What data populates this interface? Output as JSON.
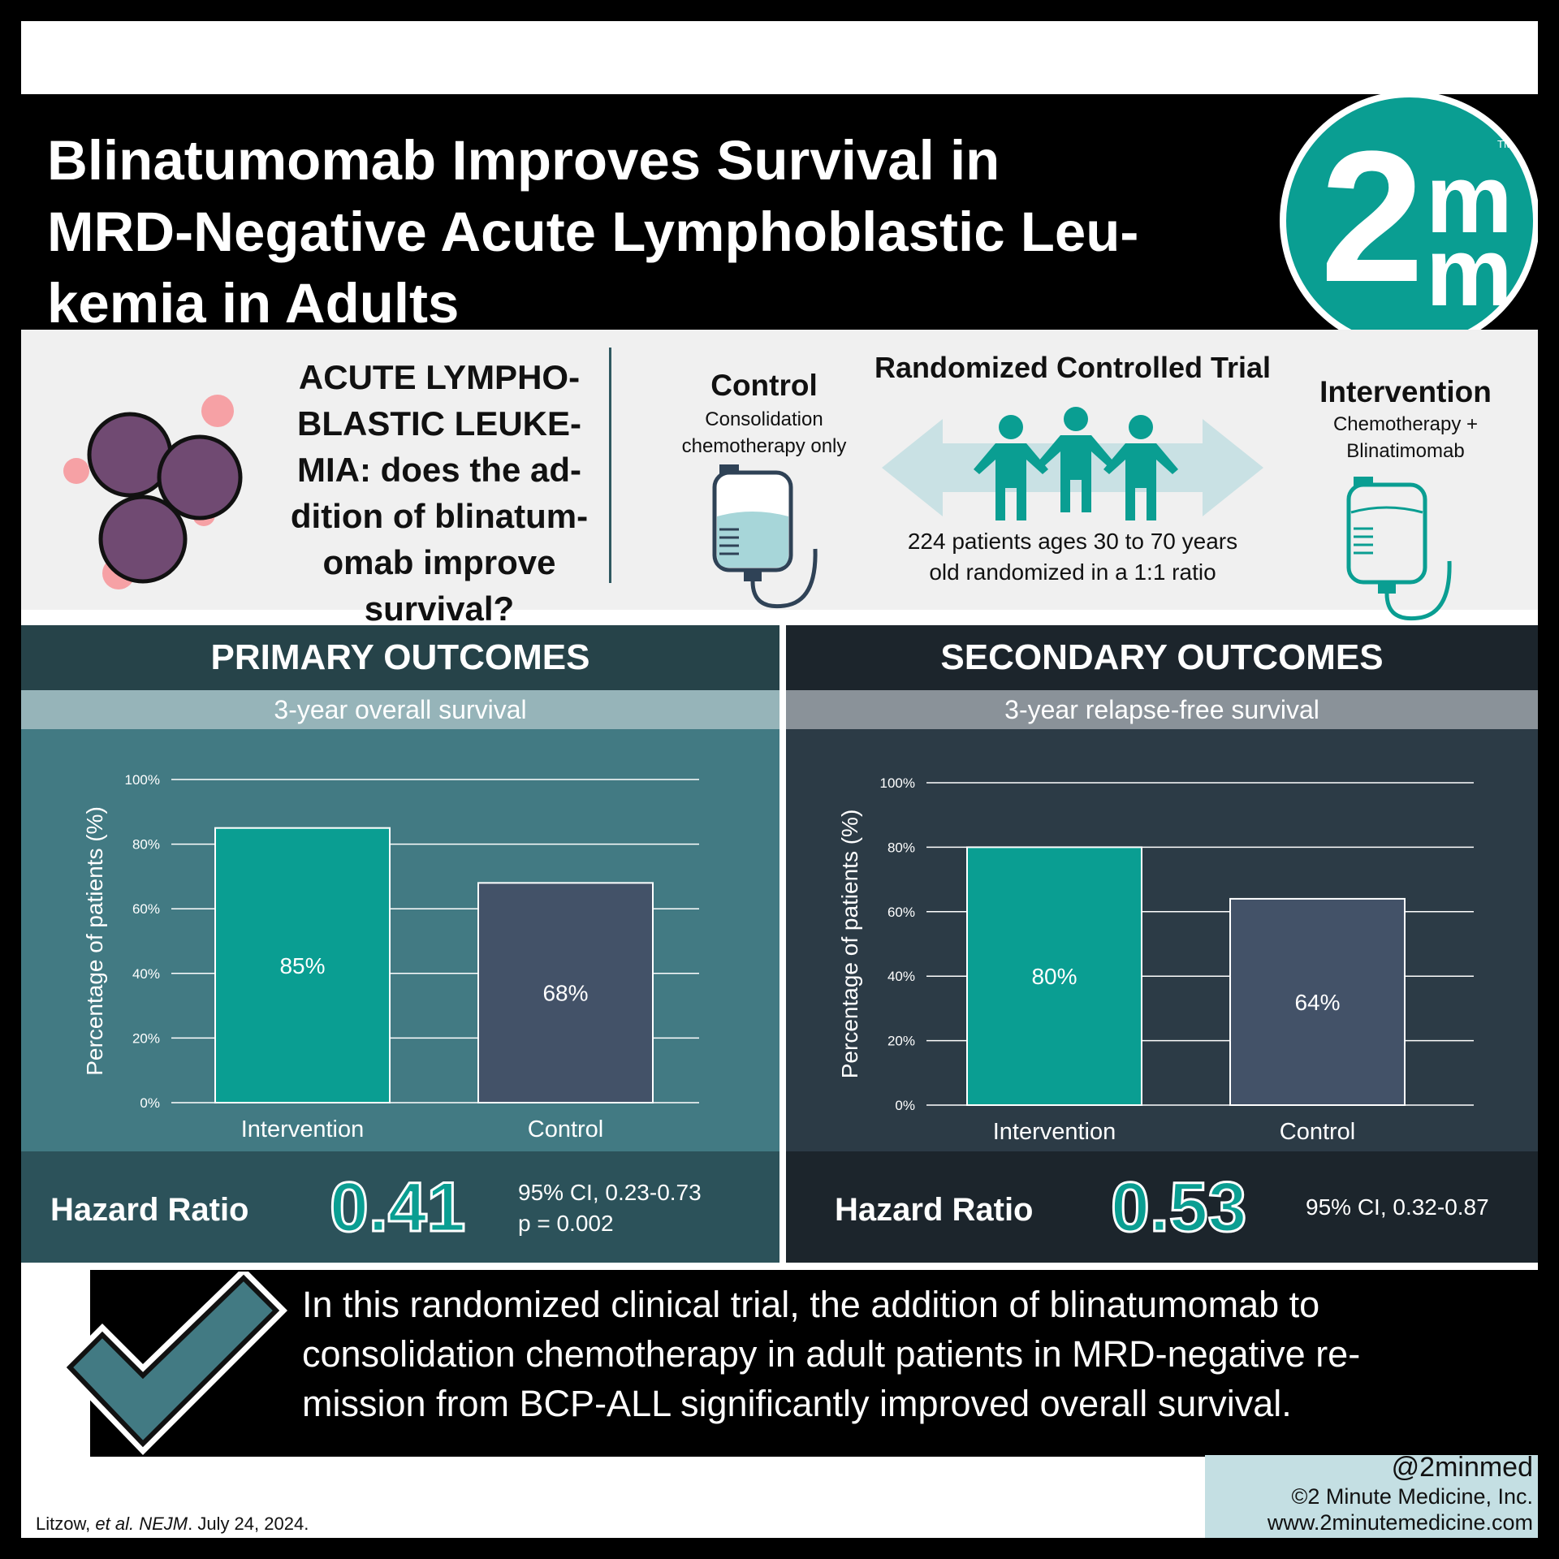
{
  "title": "Blinatumomab Improves Survival in MRD-Negative Acute Lymphoblastic Leukemia in Adults",
  "title_lines": [
    "Blinatumomab Improves Survival in",
    "MRD-Negative Acute Lymphoblastic Leu-",
    "kemia in Adults"
  ],
  "logo": {
    "number": "2",
    "letter": "m",
    "trademark": "TM"
  },
  "question_lines": [
    "ACUTE LYMPHO-",
    "BLASTIC LEUKE-",
    "MIA: does the ad-",
    "dition of blinatum-",
    "omab improve",
    "survival?"
  ],
  "trial": {
    "design": "Randomized Controlled Trial",
    "control_label": "Control",
    "control_desc_lines": [
      "Consolidation",
      "chemotherapy only"
    ],
    "intervention_label": "Intervention",
    "intervention_desc_lines": [
      "Chemotherapy +",
      "Blinatimomab"
    ],
    "patients_lines": [
      "224 patients ages 30 to 70 years",
      "old randomized in a 1:1 ratio"
    ]
  },
  "colors": {
    "teal": "#0a9e92",
    "navy_bar": "#435268",
    "pink": "#f6a1a5",
    "cell": "#704a72",
    "light_teal": "#c9e1e4",
    "icon_dark": "#2f4256"
  },
  "primary": {
    "heading": "PRIMARY OUTCOMES",
    "subheading": "3-year overall survival",
    "hazard_label": "Hazard Ratio",
    "hazard_value": "0.41",
    "ci": "95% CI, 0.23-0.73",
    "p_value": "p = 0.002"
  },
  "secondary": {
    "heading": "SECONDARY OUTCOMES",
    "subheading": "3-year relapse-free survival",
    "hazard_label": "Hazard Ratio",
    "hazard_value": "0.53",
    "ci": "95% CI, 0.32-0.87"
  },
  "chart_data": [
    {
      "type": "bar",
      "title": "3-year overall survival",
      "categories": [
        "Intervention",
        "Control"
      ],
      "values": [
        85,
        68
      ],
      "labels": [
        "85%",
        "68%"
      ],
      "ylabel": "Percentage of patients (%)",
      "ylim": [
        0,
        100
      ],
      "yticks": [
        0,
        20,
        40,
        60,
        80,
        100
      ],
      "ytick_labels": [
        "0%",
        "20%",
        "40%",
        "60%",
        "80%",
        "100%"
      ],
      "grid": true,
      "colors": [
        "#0a9e92",
        "#435268"
      ]
    },
    {
      "type": "bar",
      "title": "3-year relapse-free survival",
      "categories": [
        "Intervention",
        "Control"
      ],
      "values": [
        80,
        64
      ],
      "labels": [
        "80%",
        "64%"
      ],
      "ylabel": "Percentage of patients (%)",
      "ylim": [
        0,
        100
      ],
      "yticks": [
        0,
        20,
        40,
        60,
        80,
        100
      ],
      "ytick_labels": [
        "0%",
        "20%",
        "40%",
        "60%",
        "80%",
        "100%"
      ],
      "grid": true,
      "colors": [
        "#0a9e92",
        "#435268"
      ]
    }
  ],
  "conclusion_lines": [
    "In this randomized clinical trial, the addition of blinatumomab to",
    "consolidation chemotherapy in adult patients in MRD-negative re-",
    "mission from BCP-ALL significantly improved overall survival."
  ],
  "citation": {
    "authors": "Litzow, ",
    "etal": "et al.",
    "space": " ",
    "journal": "NEJM",
    "date": ". July 24, 2024."
  },
  "brand": {
    "handle": "@2minmed",
    "copyright": "©2 Minute Medicine, Inc.",
    "website": "www.2minutemedicine.com"
  },
  "icons": [
    "leukemia-cells-icon",
    "iv-bag-icon",
    "patients-icon",
    "bidirectional-arrow-icon",
    "checkmark-icon"
  ]
}
